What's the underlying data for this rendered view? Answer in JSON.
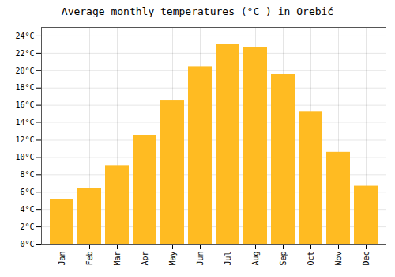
{
  "chart_data": {
    "type": "bar",
    "title": "Average monthly temperatures (°C ) in Orebić",
    "categories": [
      "Jan",
      "Feb",
      "Mar",
      "Apr",
      "May",
      "Jun",
      "Jul",
      "Aug",
      "Sep",
      "Oct",
      "Nov",
      "Dec"
    ],
    "values": [
      5.2,
      6.4,
      9.0,
      12.5,
      16.6,
      20.4,
      23.0,
      22.7,
      19.6,
      15.3,
      10.6,
      6.7
    ],
    "color": "#FFBB22",
    "ylim": [
      0,
      25
    ],
    "yticks": [
      {
        "value": 0,
        "label": "0°C"
      },
      {
        "value": 2,
        "label": "2°C"
      },
      {
        "value": 4,
        "label": "4°C"
      },
      {
        "value": 6,
        "label": "6°C"
      },
      {
        "value": 8,
        "label": "8°C"
      },
      {
        "value": 10,
        "label": "10°C"
      },
      {
        "value": 12,
        "label": "12°C"
      },
      {
        "value": 14,
        "label": "14°C"
      },
      {
        "value": 16,
        "label": "16°C"
      },
      {
        "value": 18,
        "label": "18°C"
      },
      {
        "value": 20,
        "label": "20°C"
      },
      {
        "value": 22,
        "label": "22°C"
      },
      {
        "value": 24,
        "label": "24°C"
      }
    ],
    "grid": true
  }
}
